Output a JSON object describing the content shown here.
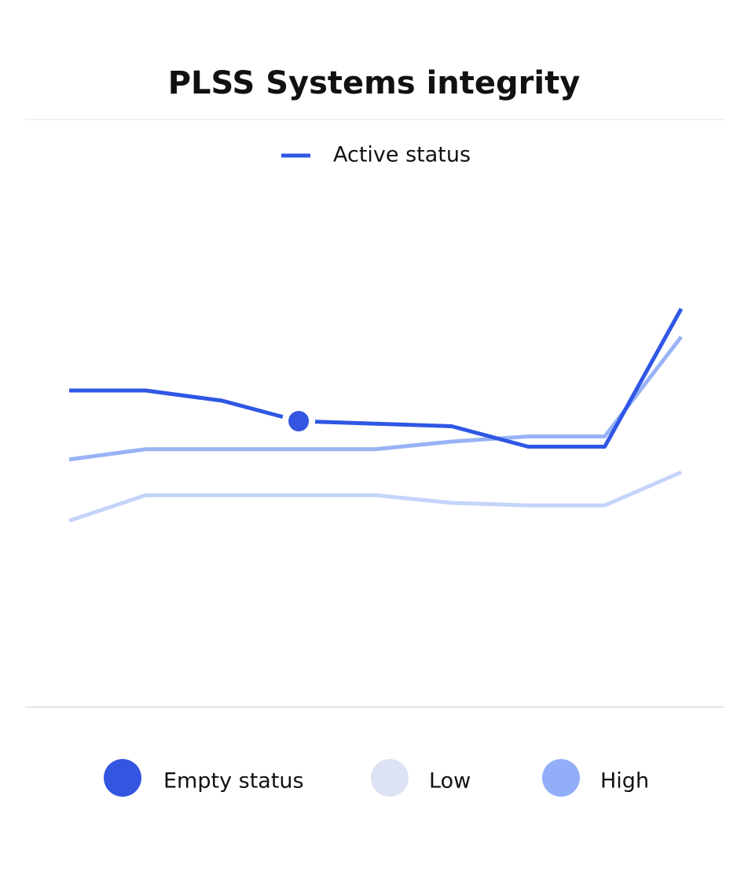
{
  "chart_data": {
    "type": "line",
    "title": "PLSS Systems integrity",
    "categories": [
      null,
      null,
      null,
      null,
      null,
      null,
      null,
      null,
      null
    ],
    "ylim": [
      0,
      100
    ],
    "series": [
      {
        "name": "Active status",
        "color": "#2f57e4",
        "values": [
          62,
          62,
          60,
          56,
          55.5,
          55,
          51,
          51,
          78
        ],
        "highlight_index": 3,
        "highlight_color": "#3355e0"
      },
      {
        "name": null,
        "color": "#98b3f5",
        "values": [
          48.5,
          50.5,
          50.5,
          50.5,
          50.5,
          52,
          53,
          53,
          72.5
        ]
      },
      {
        "name": null,
        "color": "#c5d4fa",
        "values": [
          36.5,
          41.5,
          41.5,
          41.5,
          41.5,
          40,
          39.5,
          39.5,
          46
        ]
      }
    ],
    "legend_items": [
      {
        "name": "Empty status",
        "color": "#3355e0"
      },
      {
        "name": "Low",
        "color": "#dde3f3"
      },
      {
        "name": "High",
        "color": "#93aef9"
      }
    ]
  }
}
